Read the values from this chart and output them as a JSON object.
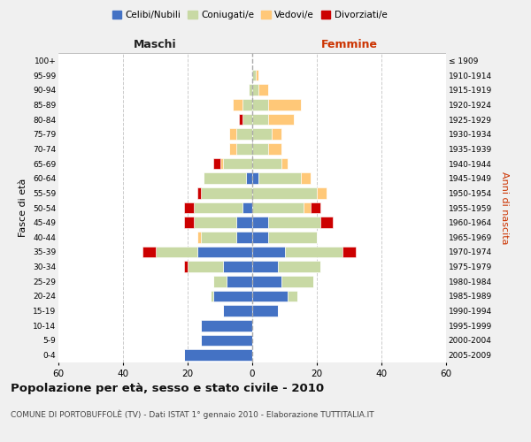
{
  "age_groups": [
    "0-4",
    "5-9",
    "10-14",
    "15-19",
    "20-24",
    "25-29",
    "30-34",
    "35-39",
    "40-44",
    "45-49",
    "50-54",
    "55-59",
    "60-64",
    "65-69",
    "70-74",
    "75-79",
    "80-84",
    "85-89",
    "90-94",
    "95-99",
    "100+"
  ],
  "birth_years": [
    "2005-2009",
    "2000-2004",
    "1995-1999",
    "1990-1994",
    "1985-1989",
    "1980-1984",
    "1975-1979",
    "1970-1974",
    "1965-1969",
    "1960-1964",
    "1955-1959",
    "1950-1954",
    "1945-1949",
    "1940-1944",
    "1935-1939",
    "1930-1934",
    "1925-1929",
    "1920-1924",
    "1915-1919",
    "1910-1914",
    "≤ 1909"
  ],
  "males": {
    "celibi": [
      21,
      16,
      16,
      9,
      12,
      8,
      9,
      17,
      5,
      5,
      3,
      0,
      2,
      0,
      0,
      0,
      0,
      0,
      0,
      0,
      0
    ],
    "coniugati": [
      0,
      0,
      0,
      0,
      1,
      4,
      11,
      13,
      11,
      13,
      15,
      16,
      13,
      9,
      5,
      5,
      3,
      3,
      1,
      0,
      0
    ],
    "vedovi": [
      0,
      0,
      0,
      0,
      0,
      0,
      0,
      0,
      1,
      0,
      0,
      0,
      0,
      1,
      2,
      2,
      0,
      3,
      0,
      0,
      0
    ],
    "divorziati": [
      0,
      0,
      0,
      0,
      0,
      0,
      1,
      4,
      0,
      3,
      3,
      1,
      0,
      2,
      0,
      0,
      1,
      0,
      0,
      0,
      0
    ]
  },
  "females": {
    "nubili": [
      0,
      0,
      0,
      8,
      11,
      9,
      8,
      10,
      5,
      5,
      0,
      0,
      2,
      0,
      0,
      0,
      0,
      0,
      0,
      0,
      0
    ],
    "coniugate": [
      0,
      0,
      0,
      0,
      3,
      10,
      13,
      18,
      15,
      16,
      16,
      20,
      13,
      9,
      5,
      6,
      5,
      5,
      2,
      1,
      0
    ],
    "vedove": [
      0,
      0,
      0,
      0,
      0,
      0,
      0,
      0,
      0,
      0,
      2,
      3,
      3,
      2,
      4,
      3,
      8,
      10,
      3,
      1,
      0
    ],
    "divorziate": [
      0,
      0,
      0,
      0,
      0,
      0,
      0,
      4,
      0,
      4,
      3,
      0,
      0,
      0,
      0,
      0,
      0,
      0,
      0,
      0,
      0
    ]
  },
  "colors": {
    "celibi": "#4472c4",
    "coniugati": "#c8d9a4",
    "vedovi": "#ffc878",
    "divorziati": "#cc0000"
  },
  "title": "Popolazione per età, sesso e stato civile - 2010",
  "subtitle": "COMUNE DI PORTOBUFFOLÈ (TV) - Dati ISTAT 1° gennaio 2010 - Elaborazione TUTTITALIA.IT",
  "xlabel_left": "Maschi",
  "xlabel_right": "Femmine",
  "ylabel_left": "Fasce di età",
  "ylabel_right": "Anni di nascita",
  "xlim": 60,
  "background_color": "#f0f0f0",
  "plot_background": "#ffffff"
}
